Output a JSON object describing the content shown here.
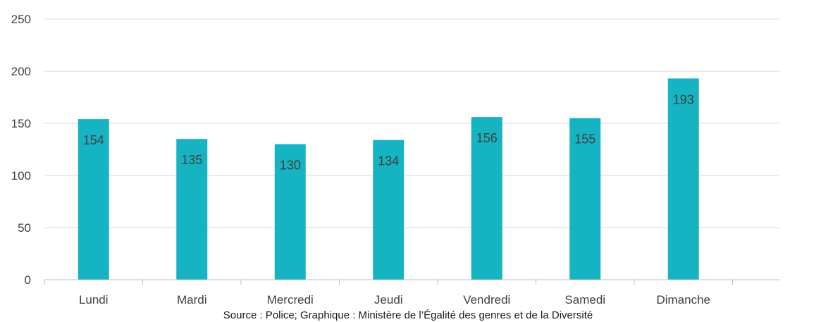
{
  "chart_data": {
    "type": "bar",
    "categories": [
      "Lundi",
      "Mardi",
      "Mercredi",
      "Jeudi",
      "Vendredi",
      "Samedi",
      "Dimanche"
    ],
    "values": [
      154,
      135,
      130,
      134,
      156,
      155,
      193
    ],
    "data_labels": [
      "154",
      "135",
      "130",
      "134",
      "156",
      "155",
      "193"
    ],
    "yticks": [
      0,
      50,
      100,
      150,
      200,
      250
    ],
    "ylim": [
      0,
      250
    ],
    "grid": true,
    "legend": "none",
    "source": "Source : Police; Graphique : Ministère de l’Égalité des genres et de la Diversité",
    "colors": {
      "bar": "#16b3c2",
      "grid": "#d9d9d9",
      "axis": "#bfbfbf",
      "text": "#404040"
    }
  }
}
